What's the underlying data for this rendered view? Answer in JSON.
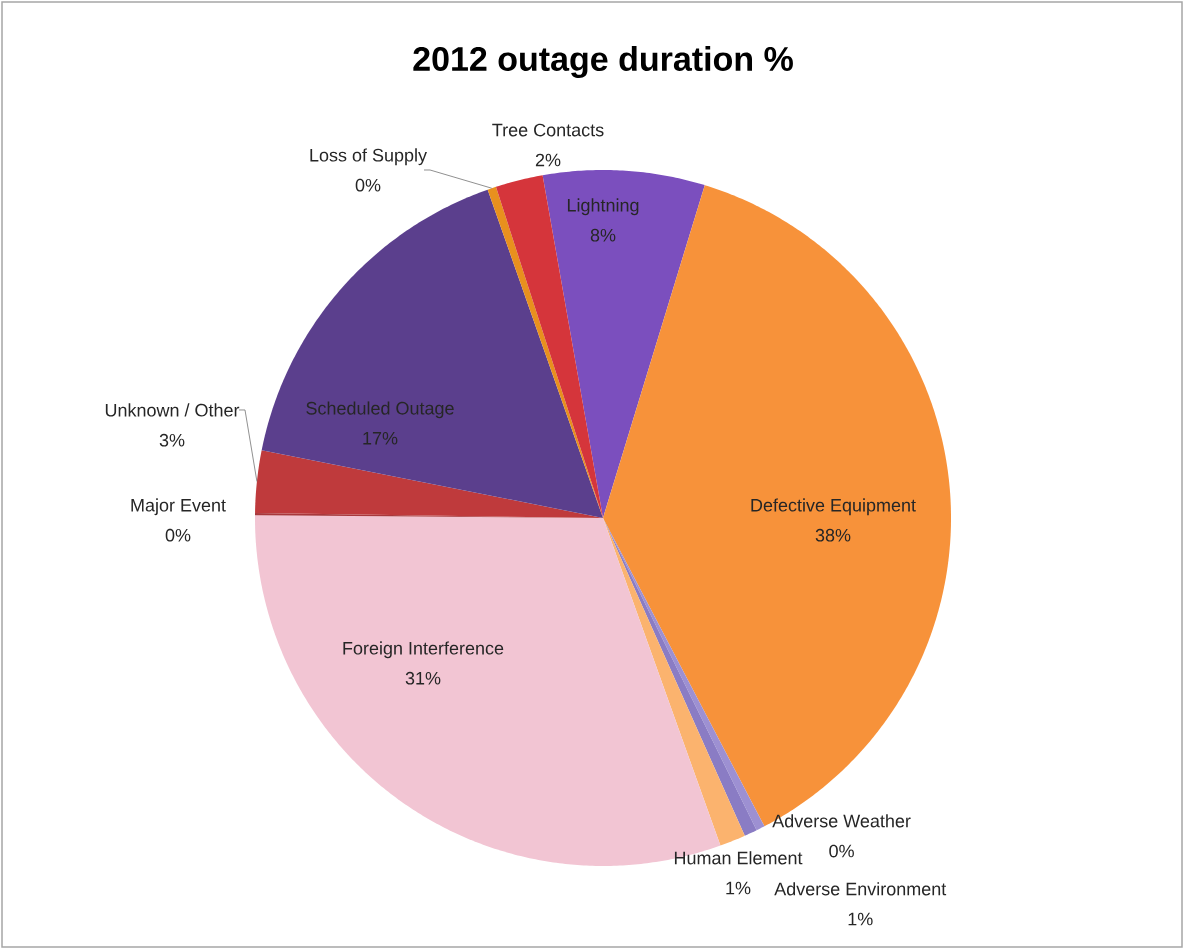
{
  "chart_data": {
    "type": "pie",
    "title": "2012 outage duration %",
    "categories": [
      "Lightning",
      "Defective Equipment",
      "Adverse Weather",
      "Adverse Environment",
      "Human Element",
      "Foreign Interference",
      "Major Event",
      "Unknown / Other",
      "Scheduled Outage",
      "Loss of Supply",
      "Tree Contacts"
    ],
    "values": [
      7.5,
      37.6,
      0.4,
      0.6,
      1.2,
      30.6,
      0.1,
      2.9,
      16.5,
      0.4,
      2.2
    ],
    "value_labels": [
      "8%",
      "38%",
      "0%",
      "1%",
      "1%",
      "31%",
      "0%",
      "3%",
      "17%",
      "0%",
      "2%"
    ],
    "colors": [
      "#7b4fbe",
      "#f7923a",
      "#9d90d2",
      "#8a7cc4",
      "#fbb36e",
      "#f2c5d3",
      "#a8383c",
      "#bf3a3c",
      "#5b3f8d",
      "#e8901e",
      "#d5353b"
    ]
  }
}
